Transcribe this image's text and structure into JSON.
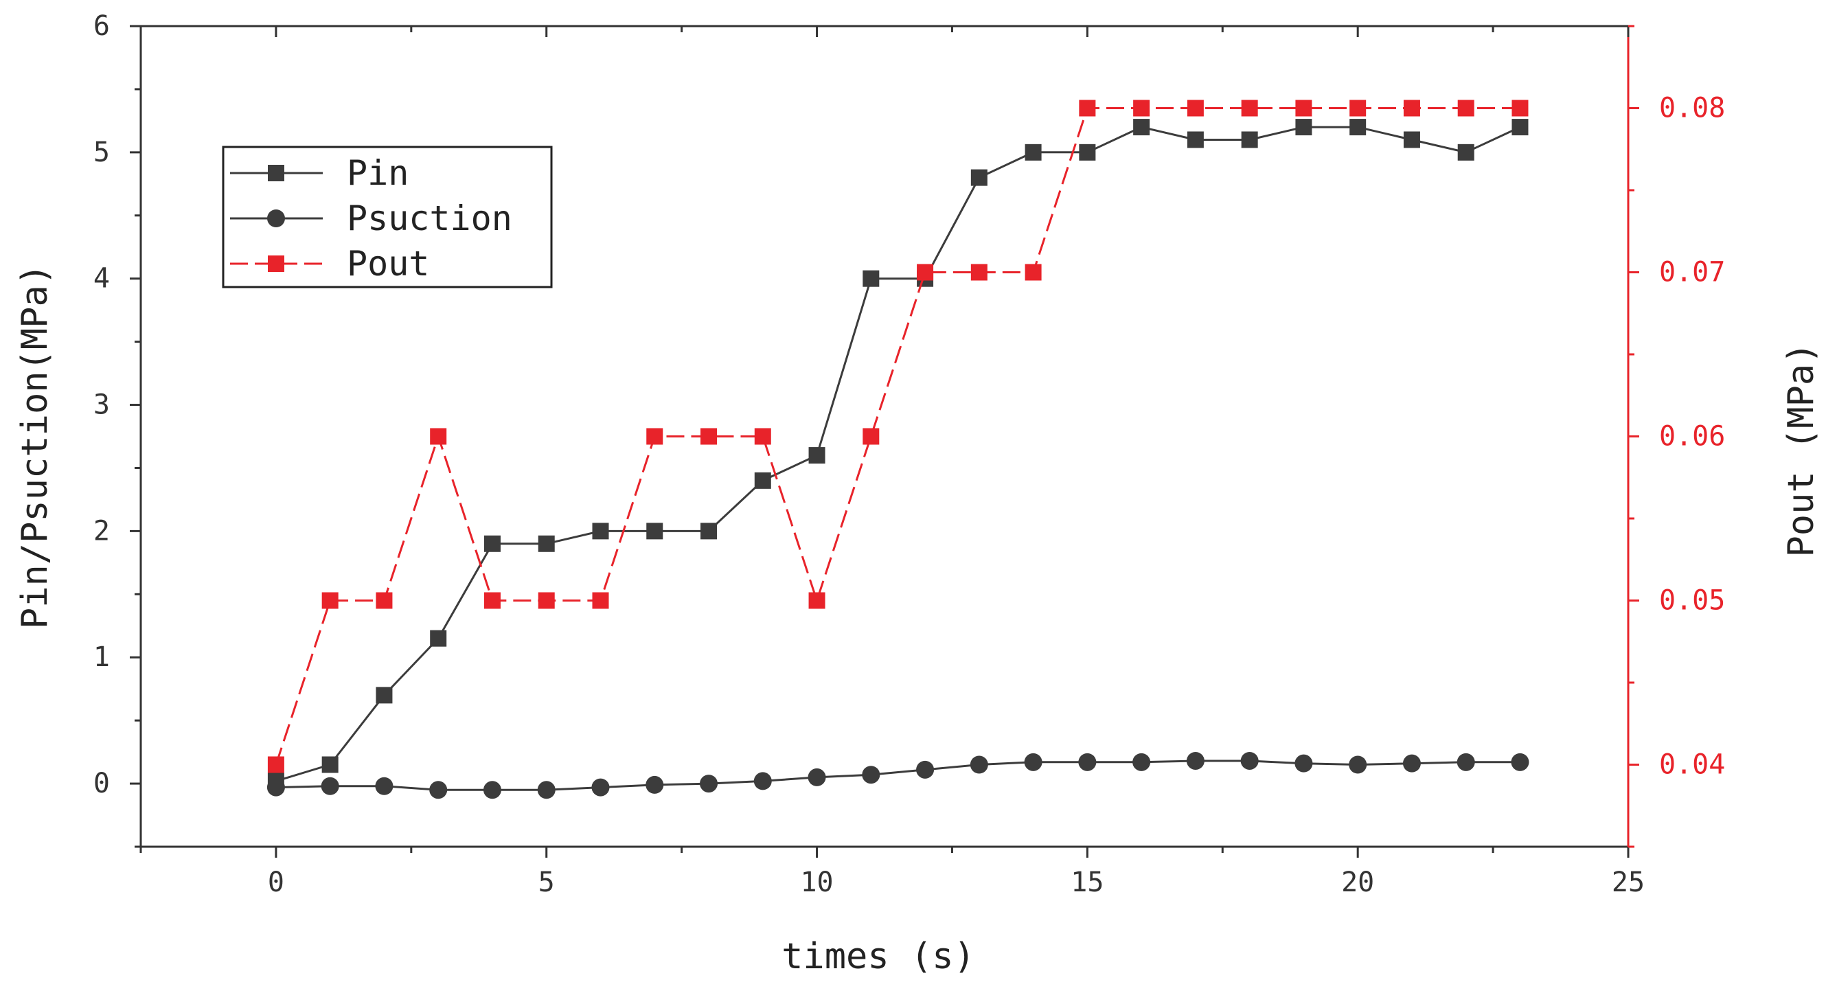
{
  "chart_data": {
    "type": "line",
    "title": "",
    "xlabel": "times (s)",
    "ylabel_left": "Pin/Psuction(MPa)",
    "ylabel_right": "Pout (MPa)",
    "xlim": [
      -2.5,
      25
    ],
    "ylim_left": [
      -0.5,
      6
    ],
    "ylim_right": [
      0.035,
      0.085
    ],
    "x_ticks": [
      0,
      5,
      10,
      15,
      20,
      25
    ],
    "y_ticks_left": [
      0,
      1,
      2,
      3,
      4,
      5,
      6
    ],
    "y_ticks_right": [
      0.04,
      0.05,
      0.06,
      0.07,
      0.08
    ],
    "y_tick_labels_right": [
      "0.04",
      "0.05",
      "0.06",
      "0.07",
      "0.08"
    ],
    "legend_position": "top-left",
    "x": [
      0,
      1,
      2,
      3,
      4,
      5,
      6,
      7,
      8,
      9,
      10,
      11,
      12,
      13,
      14,
      15,
      16,
      17,
      18,
      19,
      20,
      21,
      22,
      23
    ],
    "series": [
      {
        "name": "Pin",
        "axis": "left",
        "marker": "square",
        "color": "#3c3c3c",
        "line": "solid",
        "values": [
          0.02,
          0.15,
          0.7,
          1.15,
          1.9,
          1.9,
          2.0,
          2.0,
          2.0,
          2.4,
          2.6,
          4.0,
          4.0,
          4.8,
          5.0,
          5.0,
          5.2,
          5.1,
          5.1,
          5.2,
          5.2,
          5.1,
          5.0,
          5.2
        ]
      },
      {
        "name": "Psuction",
        "axis": "left",
        "marker": "circle",
        "color": "#3c3c3c",
        "line": "solid",
        "values": [
          -0.03,
          -0.02,
          -0.02,
          -0.05,
          -0.05,
          -0.05,
          -0.03,
          -0.01,
          0.0,
          0.02,
          0.05,
          0.07,
          0.11,
          0.15,
          0.17,
          0.17,
          0.17,
          0.18,
          0.18,
          0.16,
          0.15,
          0.16,
          0.17,
          0.17
        ]
      },
      {
        "name": "Pout",
        "axis": "right",
        "marker": "square",
        "color": "#e8232a",
        "line": "dashed",
        "values": [
          0.04,
          0.05,
          0.05,
          0.06,
          0.05,
          0.05,
          0.05,
          0.06,
          0.06,
          0.06,
          0.05,
          0.06,
          0.07,
          0.07,
          0.07,
          0.08,
          0.08,
          0.08,
          0.08,
          0.08,
          0.08,
          0.08,
          0.08,
          0.08
        ]
      }
    ]
  }
}
